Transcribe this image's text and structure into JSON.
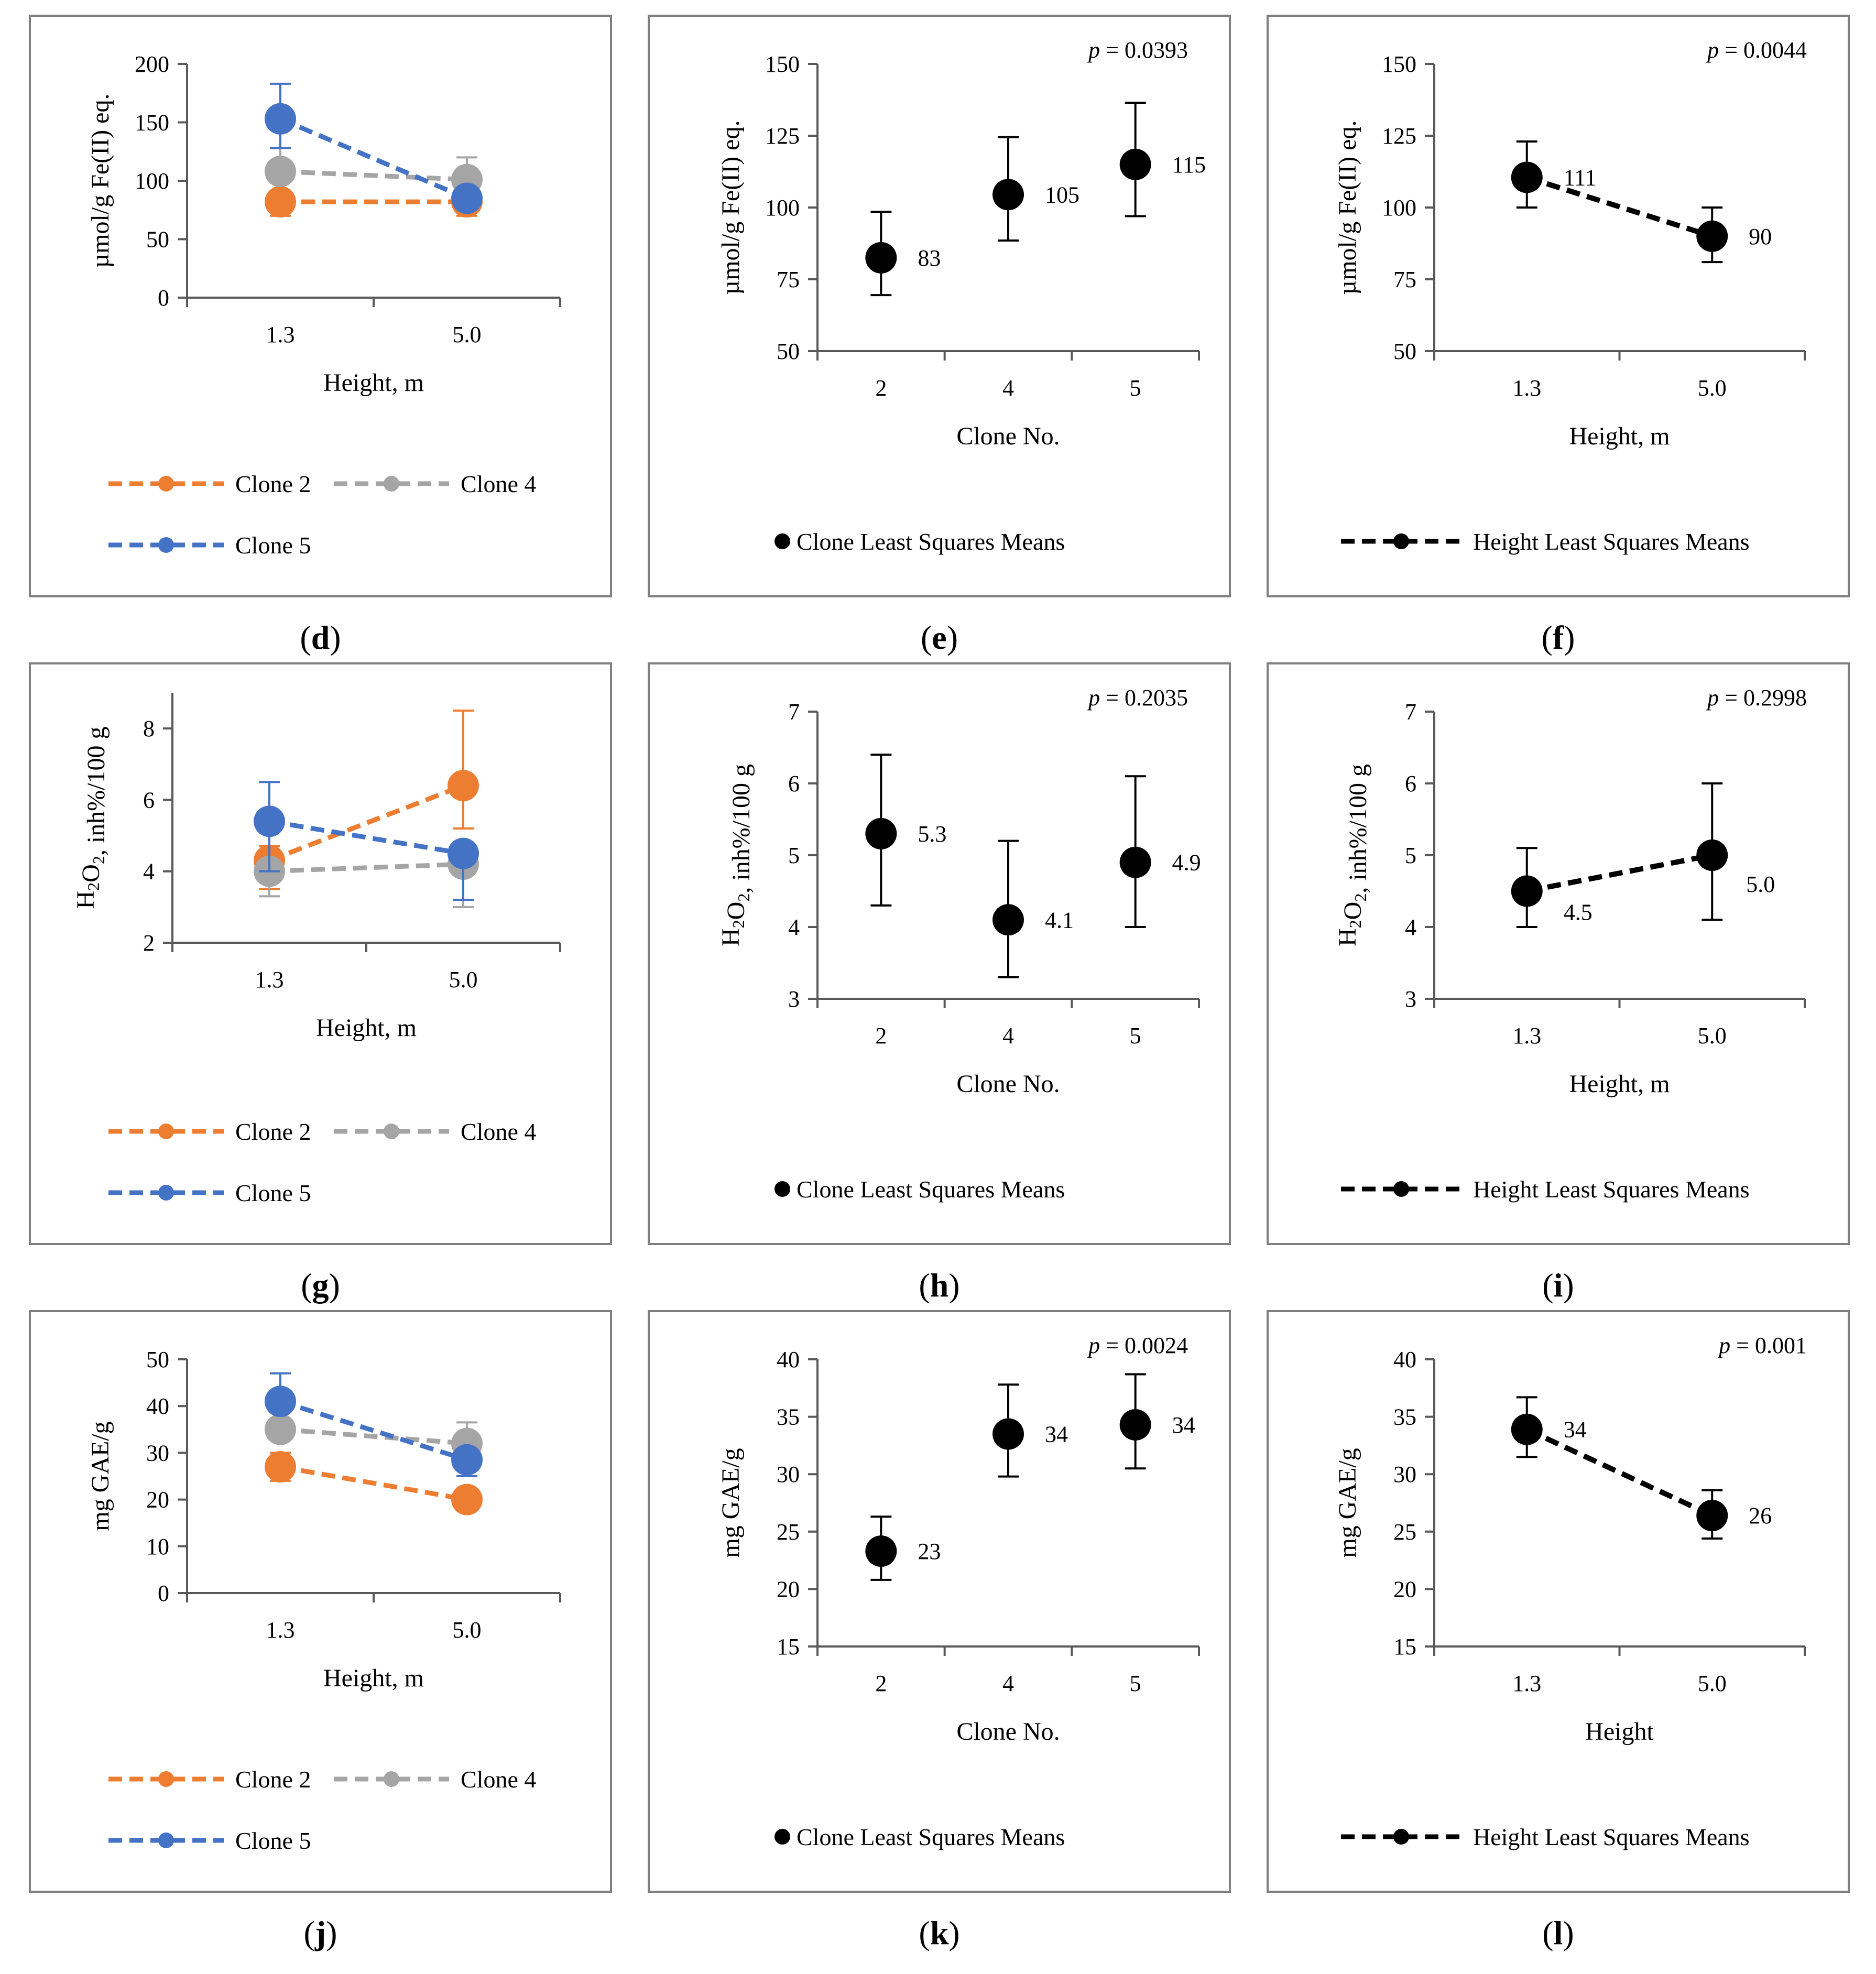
{
  "colors": {
    "clone2": "#ED7D31",
    "clone4": "#A5A5A5",
    "clone5": "#4472C4",
    "lsm": "#000000",
    "frame": "#7f7f7f",
    "axis": "#595959"
  },
  "chart_data": [
    {
      "id": "d",
      "panel_label": "d",
      "type": "line",
      "title": "",
      "xlabel": "Height, m",
      "ylabel": "µmol/g Fe(II) eq.",
      "ylim": [
        0,
        200
      ],
      "yticks": [
        0,
        50,
        100,
        150,
        200
      ],
      "ytick_labels": [
        "0",
        "50",
        "100",
        "150",
        "200"
      ],
      "categories": [
        "1.3",
        "5.0"
      ],
      "series": [
        {
          "name": "Clone 2",
          "color": "#ED7D31",
          "values": [
            82,
            82
          ],
          "err_up": [
            0,
            0
          ],
          "err_down": [
            12,
            12
          ]
        },
        {
          "name": "Clone 4",
          "color": "#A5A5A5",
          "values": [
            108,
            101
          ],
          "err_up": [
            20,
            19
          ],
          "err_down": [
            0,
            0
          ]
        },
        {
          "name": "Clone 5",
          "color": "#4472C4",
          "values": [
            153,
            85
          ],
          "err_up": [
            30,
            0
          ],
          "err_down": [
            25,
            0
          ]
        }
      ],
      "legend": [
        "Clone 2",
        "Clone 4",
        "Clone 5"
      ],
      "legend_position": "bottom"
    },
    {
      "id": "e",
      "panel_label": "e",
      "type": "scatter",
      "title": "",
      "xlabel": "Clone No.",
      "ylabel": "µmol/g Fe(II) eq.",
      "ylim": [
        50,
        150
      ],
      "yticks": [
        50,
        75,
        100,
        125,
        150
      ],
      "ytick_labels": [
        "50",
        "75",
        "100",
        "125",
        "150"
      ],
      "categories": [
        "2",
        "4",
        "5"
      ],
      "series": [
        {
          "name": "Clone Least Squares Means",
          "color": "#000000",
          "values": [
            82.5,
            104.5,
            115
          ],
          "err_up": [
            16,
            20,
            21.5
          ],
          "err_down": [
            13,
            16,
            18
          ],
          "labels": [
            "83",
            "105",
            "115"
          ]
        }
      ],
      "p_italic": "p",
      "p_text": " = 0.0393",
      "legend": [
        "Clone Least Squares Means"
      ],
      "legend_position": "bottom"
    },
    {
      "id": "f",
      "panel_label": "f",
      "type": "line",
      "title": "",
      "xlabel": "Height, m",
      "ylabel": "µmol/g Fe(II) eq.",
      "ylim": [
        50,
        150
      ],
      "yticks": [
        50,
        75,
        100,
        125,
        150
      ],
      "ytick_labels": [
        "50",
        "75",
        "100",
        "125",
        "150"
      ],
      "categories": [
        "1.3",
        "5.0"
      ],
      "series": [
        {
          "name": "Height Least Squares Means",
          "color": "#000000",
          "values": [
            110.5,
            90
          ],
          "err_up": [
            12.5,
            10
          ],
          "err_down": [
            10.5,
            9
          ],
          "labels": [
            "111",
            "90"
          ]
        }
      ],
      "p_italic": "p",
      "p_text": " = 0.0044",
      "legend": [
        "Height Least Squares Means"
      ],
      "legend_position": "bottom"
    },
    {
      "id": "g",
      "panel_label": "g",
      "type": "line",
      "title": "",
      "xlabel": "Height, m",
      "ylabel": "H2O2, inh%/100 g",
      "ylim": [
        2,
        9
      ],
      "yticks": [
        2,
        4,
        6,
        8
      ],
      "ytick_labels": [
        "2",
        "4",
        "6",
        "8"
      ],
      "categories": [
        "1.3",
        "5.0"
      ],
      "series": [
        {
          "name": "Clone 2",
          "color": "#ED7D31",
          "values": [
            4.3,
            6.4
          ],
          "err_up": [
            0.4,
            2.1
          ],
          "err_down": [
            0.8,
            1.2
          ]
        },
        {
          "name": "Clone 4",
          "color": "#A5A5A5",
          "values": [
            4.0,
            4.2
          ],
          "err_up": [
            0.3,
            0.3
          ],
          "err_down": [
            0.7,
            1.2
          ]
        },
        {
          "name": "Clone 5",
          "color": "#4472C4",
          "values": [
            5.4,
            4.5
          ],
          "err_up": [
            1.1,
            0
          ],
          "err_down": [
            1.4,
            1.3
          ]
        }
      ],
      "legend": [
        "Clone 2",
        "Clone 4",
        "Clone 5"
      ],
      "legend_position": "bottom"
    },
    {
      "id": "h",
      "panel_label": "h",
      "type": "scatter",
      "title": "",
      "xlabel": "Clone No.",
      "ylabel": "H2O2, inh%/100 g",
      "ylim": [
        3,
        7
      ],
      "yticks": [
        3,
        4,
        5,
        6,
        7
      ],
      "ytick_labels": [
        "3",
        "4",
        "5",
        "6",
        "7"
      ],
      "categories": [
        "2",
        "4",
        "5"
      ],
      "series": [
        {
          "name": "Clone Least Squares Means",
          "color": "#000000",
          "values": [
            5.3,
            4.1,
            4.9
          ],
          "err_up": [
            1.1,
            1.1,
            1.2
          ],
          "err_down": [
            1.0,
            0.8,
            0.9
          ],
          "labels": [
            "5.3",
            "4.1",
            "4.9"
          ]
        }
      ],
      "p_italic": "p",
      "p_text": " = 0.2035",
      "legend": [
        "Clone Least Squares Means"
      ],
      "legend_position": "bottom"
    },
    {
      "id": "i",
      "panel_label": "i",
      "type": "line",
      "title": "",
      "xlabel": "Height, m",
      "ylabel": "H2O2, inh%/100 g",
      "ylim": [
        3,
        7
      ],
      "yticks": [
        3,
        4,
        5,
        6,
        7
      ],
      "ytick_labels": [
        "3",
        "4",
        "5",
        "6",
        "7"
      ],
      "categories": [
        "1.3",
        "5.0"
      ],
      "series": [
        {
          "name": "Height Least Squares Means",
          "color": "#000000",
          "values": [
            4.5,
            5.0
          ],
          "err_up": [
            0.6,
            1.0
          ],
          "err_down": [
            0.5,
            0.9
          ],
          "labels": [
            "4.5",
            "5.0"
          ]
        }
      ],
      "p_italic": "p",
      "p_text": " = 0.2998",
      "legend": [
        "Height Least Squares Means"
      ],
      "legend_position": "bottom"
    },
    {
      "id": "j",
      "panel_label": "j",
      "type": "line",
      "title": "",
      "xlabel": "Height, m",
      "ylabel": "mg GAE/g",
      "ylim": [
        0,
        50
      ],
      "yticks": [
        0,
        10,
        20,
        30,
        40,
        50
      ],
      "ytick_labels": [
        "0",
        "10",
        "20",
        "30",
        "40",
        "50"
      ],
      "categories": [
        "1.3",
        "5.0"
      ],
      "series": [
        {
          "name": "Clone 2",
          "color": "#ED7D31",
          "values": [
            27,
            20
          ],
          "err_up": [
            3,
            0
          ],
          "err_down": [
            3,
            0
          ]
        },
        {
          "name": "Clone 4",
          "color": "#A5A5A5",
          "values": [
            35,
            32
          ],
          "err_up": [
            0,
            4.5
          ],
          "err_down": [
            0,
            0
          ]
        },
        {
          "name": "Clone 5",
          "color": "#4472C4",
          "values": [
            41,
            28.5
          ],
          "err_up": [
            6,
            0
          ],
          "err_down": [
            0,
            3.5
          ]
        }
      ],
      "legend": [
        "Clone 2",
        "Clone 4",
        "Clone 5"
      ],
      "legend_position": "bottom"
    },
    {
      "id": "k",
      "panel_label": "k",
      "type": "scatter",
      "title": "",
      "xlabel": "Clone No.",
      "ylabel": "mg GAE/g",
      "ylim": [
        15,
        40
      ],
      "yticks": [
        15,
        20,
        25,
        30,
        35,
        40
      ],
      "ytick_labels": [
        "15",
        "20",
        "25",
        "30",
        "35",
        "40"
      ],
      "categories": [
        "2",
        "4",
        "5"
      ],
      "series": [
        {
          "name": "Clone Least Squares Means",
          "color": "#000000",
          "values": [
            23.3,
            33.5,
            34.3
          ],
          "err_up": [
            3,
            4.3,
            4.4
          ],
          "err_down": [
            2.5,
            3.7,
            3.8
          ],
          "labels": [
            "23",
            "34",
            "34"
          ]
        }
      ],
      "p_italic": "p",
      "p_text": " = 0.0024",
      "legend": [
        "Clone Least Squares Means"
      ],
      "legend_position": "bottom"
    },
    {
      "id": "l",
      "panel_label": "l",
      "type": "line",
      "title": "",
      "xlabel": "Height",
      "ylabel": "mg GAE/g",
      "ylim": [
        15,
        40
      ],
      "yticks": [
        15,
        20,
        25,
        30,
        35,
        40
      ],
      "ytick_labels": [
        "15",
        "20",
        "25",
        "30",
        "35",
        "40"
      ],
      "categories": [
        "1.3",
        "5.0"
      ],
      "series": [
        {
          "name": "Height Least Squares Means",
          "color": "#000000",
          "values": [
            33.9,
            26.4
          ],
          "err_up": [
            2.8,
            2.2
          ],
          "err_down": [
            2.4,
            2.0
          ],
          "labels": [
            "34",
            "26"
          ]
        }
      ],
      "p_italic": "p",
      "p_text": " = 0.001",
      "legend": [
        "Height Least Squares Means"
      ],
      "legend_position": "bottom"
    }
  ]
}
